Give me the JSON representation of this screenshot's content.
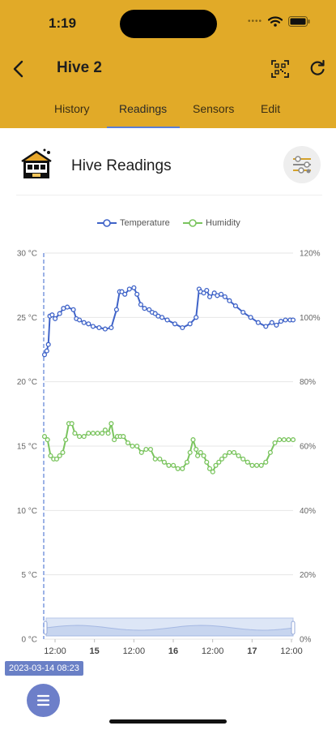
{
  "status_bar": {
    "time": "1:19"
  },
  "nav": {
    "title": "Hive 2"
  },
  "tabs": [
    {
      "label": "History"
    },
    {
      "label": "Readings",
      "active": true
    },
    {
      "label": "Sensors"
    },
    {
      "label": "Edit"
    }
  ],
  "card": {
    "title": "Hive Readings"
  },
  "colors": {
    "header": "#e1aa28",
    "temperature": "#3f63c8",
    "humidity": "#7ac45e",
    "accent": "#5b7ed6"
  },
  "icons": {
    "back": "chevron-left-icon",
    "qr": "qr-code-icon",
    "refresh": "refresh-icon",
    "hive": "hive-icon",
    "filter": "sliders-icon",
    "menu": "menu-icon"
  },
  "chart_data": {
    "type": "line",
    "legend": [
      "Temperature",
      "Humidity"
    ],
    "legend_position": "top",
    "y_left": {
      "ticks": [
        "0 °C",
        "5 °C",
        "10 °C",
        "15 °C",
        "20 °C",
        "25 °C",
        "30 °C"
      ],
      "range": [
        0,
        30
      ],
      "unit": "°C"
    },
    "y_right": {
      "ticks": [
        "0%",
        "20%",
        "40%",
        "60%",
        "80%",
        "100%",
        "120%"
      ],
      "range": [
        0,
        120
      ],
      "unit": "%"
    },
    "x_ticks": [
      "12:00",
      "15",
      "12:00",
      "16",
      "12:00",
      "17",
      "12:00"
    ],
    "x_range_days": [
      0,
      3.28
    ],
    "grid": true,
    "series": [
      {
        "name": "Temperature",
        "axis": "left",
        "x": [
          0.0,
          0.03,
          0.05,
          0.07,
          0.1,
          0.14,
          0.2,
          0.25,
          0.3,
          0.38,
          0.42,
          0.46,
          0.52,
          0.58,
          0.64,
          0.72,
          0.8,
          0.88,
          0.95,
          0.99,
          1.02,
          1.06,
          1.12,
          1.18,
          1.22,
          1.27,
          1.32,
          1.38,
          1.42,
          1.46,
          1.5,
          1.55,
          1.62,
          1.72,
          1.82,
          1.92,
          2.0,
          2.04,
          2.06,
          2.1,
          2.14,
          2.18,
          2.24,
          2.28,
          2.33,
          2.38,
          2.44,
          2.52,
          2.62,
          2.72,
          2.82,
          2.92,
          3.0,
          3.06,
          3.12,
          3.18,
          3.24,
          3.28
        ],
        "y": [
          22.1,
          22.4,
          22.9,
          25.1,
          25.2,
          24.9,
          25.3,
          25.7,
          25.8,
          25.6,
          24.9,
          24.8,
          24.6,
          24.5,
          24.3,
          24.2,
          24.1,
          24.2,
          25.6,
          27.0,
          27.0,
          26.8,
          27.2,
          27.3,
          26.8,
          26.0,
          25.7,
          25.6,
          25.4,
          25.3,
          25.1,
          25.0,
          24.8,
          24.5,
          24.2,
          24.5,
          25.0,
          27.2,
          27.0,
          26.9,
          27.1,
          26.6,
          26.9,
          26.7,
          26.8,
          26.6,
          26.3,
          25.9,
          25.4,
          25.0,
          24.6,
          24.3,
          24.6,
          24.4,
          24.7,
          24.8,
          24.8,
          24.8
        ]
      },
      {
        "name": "Humidity",
        "axis": "right",
        "x": [
          0.0,
          0.04,
          0.08,
          0.12,
          0.16,
          0.2,
          0.24,
          0.28,
          0.32,
          0.36,
          0.4,
          0.46,
          0.52,
          0.58,
          0.64,
          0.7,
          0.76,
          0.8,
          0.84,
          0.88,
          0.92,
          0.96,
          1.0,
          1.04,
          1.1,
          1.16,
          1.22,
          1.28,
          1.34,
          1.4,
          1.46,
          1.52,
          1.58,
          1.64,
          1.7,
          1.76,
          1.82,
          1.88,
          1.92,
          1.96,
          2.0,
          2.02,
          2.06,
          2.1,
          2.14,
          2.18,
          2.22,
          2.26,
          2.3,
          2.34,
          2.38,
          2.44,
          2.5,
          2.56,
          2.62,
          2.68,
          2.74,
          2.8,
          2.86,
          2.92,
          2.98,
          3.04,
          3.1,
          3.16,
          3.22,
          3.28
        ],
        "y": [
          63,
          62,
          57,
          56,
          56,
          57,
          58,
          62,
          67,
          67,
          64,
          63,
          63,
          64,
          64,
          64,
          64,
          65,
          64,
          67,
          62,
          63,
          63,
          63,
          61,
          60,
          60,
          58,
          59,
          59,
          56,
          56,
          55,
          54,
          54,
          53,
          53,
          55,
          58,
          62,
          59,
          57,
          58,
          57,
          55,
          53,
          52,
          54,
          55,
          56,
          57,
          58,
          58,
          57,
          56,
          55,
          54,
          54,
          54,
          55,
          58,
          61,
          62,
          62,
          62,
          62
        ]
      }
    ]
  },
  "selected_date": "2023-03-14 08:23"
}
